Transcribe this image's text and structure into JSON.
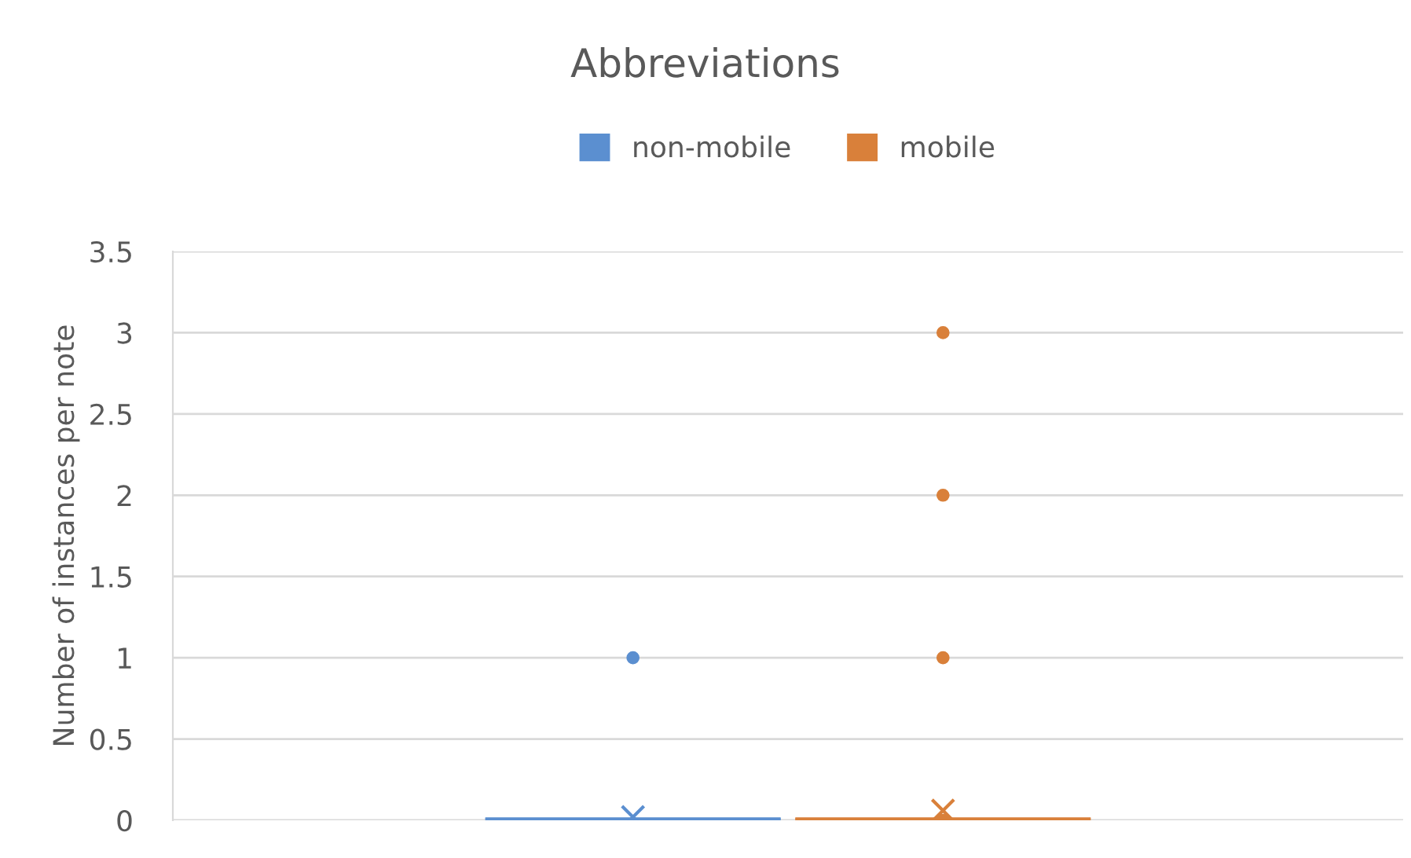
{
  "chart_data": {
    "type": "box",
    "title": "Abbreviations",
    "ylabel": "Number of instances per note",
    "categories": [
      null
    ],
    "series": [
      {
        "name": "non-mobile",
        "color": "#5b8fd0",
        "boxes": [
          {
            "low": 0,
            "q1": 0,
            "median": 0,
            "q3": 0,
            "high": 0,
            "mean": 0.02,
            "outliers": [
              1
            ]
          }
        ]
      },
      {
        "name": "mobile",
        "color": "#d9803a",
        "boxes": [
          {
            "low": 0,
            "q1": 0,
            "median": 0,
            "q3": 0,
            "high": 0,
            "mean": 0.06,
            "outliers": [
              0,
              1,
              2,
              3
            ]
          }
        ]
      }
    ],
    "ylim": [
      0,
      3.5
    ],
    "yticks": [
      0,
      0.5,
      1,
      1.5,
      2,
      2.5,
      3,
      3.5
    ],
    "grid": "y",
    "legend": "top"
  }
}
